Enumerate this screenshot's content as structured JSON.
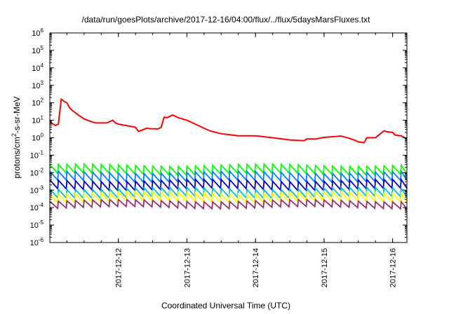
{
  "chart_data": {
    "type": "line",
    "title": "/data/run/goesPlots/archive/2017-12-16/04:00/flux/../flux/5daysMarsFluxes.txt",
    "xlabel": "Coordinated Universal Time (UTC)",
    "ylabel_parts": {
      "pre": "protons/cm",
      "sup": "2",
      "post": "-s-sr-MeV"
    },
    "y_scale": "log",
    "ylim": [
      1e-06,
      1000000.0
    ],
    "y_ticks": [
      {
        "base": "10",
        "exp": "-6"
      },
      {
        "base": "10",
        "exp": "-5"
      },
      {
        "base": "10",
        "exp": "-4"
      },
      {
        "base": "10",
        "exp": "-3"
      },
      {
        "base": "10",
        "exp": "-2"
      },
      {
        "base": "10",
        "exp": "-1"
      },
      {
        "base": "10",
        "exp": "0"
      },
      {
        "base": "10",
        "exp": "1"
      },
      {
        "base": "10",
        "exp": "2"
      },
      {
        "base": "10",
        "exp": "3"
      },
      {
        "base": "10",
        "exp": "4"
      },
      {
        "base": "10",
        "exp": "5"
      },
      {
        "base": "10",
        "exp": "6"
      }
    ],
    "x_ticks": [
      "2017-12-12",
      "2017-12-13",
      "2017-12-14",
      "2017-12-15",
      "2017-12-16"
    ],
    "xlim": [
      "2017-12-11 00:00",
      "2017-12-16 05:00"
    ],
    "grid": false,
    "legend": "none",
    "series": [
      {
        "color": "#ff0000",
        "x": [
          "2017-12-11 00:00",
          "2017-12-11 02:00",
          "2017-12-11 03:00",
          "2017-12-11 04:00",
          "2017-12-11 05:00",
          "2017-12-11 06:00",
          "2017-12-11 07:00",
          "2017-12-11 08:00",
          "2017-12-11 10:00",
          "2017-12-11 12:00",
          "2017-12-11 14:00",
          "2017-12-11 16:00",
          "2017-12-11 20:00",
          "2017-12-11 22:00",
          "2017-12-11 23:00",
          "2017-12-12 00:00",
          "2017-12-12 06:00",
          "2017-12-12 07:00",
          "2017-12-12 10:00",
          "2017-12-12 11:00",
          "2017-12-12 14:00",
          "2017-12-12 15:00",
          "2017-12-12 16:00",
          "2017-12-12 17:00",
          "2017-12-12 19:00",
          "2017-12-12 21:00",
          "2017-12-13 00:00",
          "2017-12-13 04:00",
          "2017-12-13 08:00",
          "2017-12-13 12:00",
          "2017-12-13 18:00",
          "2017-12-14 00:00",
          "2017-12-14 06:00",
          "2017-12-14 12:00",
          "2017-12-14 17:00",
          "2017-12-14 18:00",
          "2017-12-14 21:00",
          "2017-12-15 00:00",
          "2017-12-15 06:00",
          "2017-12-15 09:00",
          "2017-12-15 11:00",
          "2017-12-15 12:00",
          "2017-12-15 14:00",
          "2017-12-15 15:00",
          "2017-12-15 18:00",
          "2017-12-15 21:00",
          "2017-12-15 22:00",
          "2017-12-16 00:00",
          "2017-12-16 01:00",
          "2017-12-16 03:00",
          "2017-12-16 05:00"
        ],
        "values": [
          8,
          5,
          6,
          160,
          120,
          100,
          50,
          35,
          20,
          12,
          9,
          7,
          7,
          10,
          7,
          6,
          4,
          2.3,
          3.5,
          3.3,
          3.2,
          4,
          15,
          14,
          20,
          14,
          10,
          5,
          2.5,
          1.7,
          1.3,
          1.3,
          1.0,
          0.75,
          0.68,
          0.85,
          0.85,
          1.05,
          1.25,
          0.9,
          0.7,
          0.58,
          0.52,
          1.0,
          1.0,
          2.5,
          2.2,
          2.0,
          1.4,
          1.3,
          0.85
        ]
      },
      {
        "color": "#00ff00",
        "base": 0.027,
        "depth": 3.2
      },
      {
        "color": "#0080ff",
        "base": 0.0105,
        "depth": 3.2
      },
      {
        "color": "#0000c0",
        "base": 0.0036,
        "depth": 3.2
      },
      {
        "color": "#00c0c0",
        "base": 0.00125,
        "depth": 3.2
      },
      {
        "color": "#ffff00",
        "base": 0.0007,
        "depth": 3.2
      },
      {
        "color": "#9b2f6a",
        "base": 0.00025,
        "depth": 2.5
      }
    ]
  }
}
